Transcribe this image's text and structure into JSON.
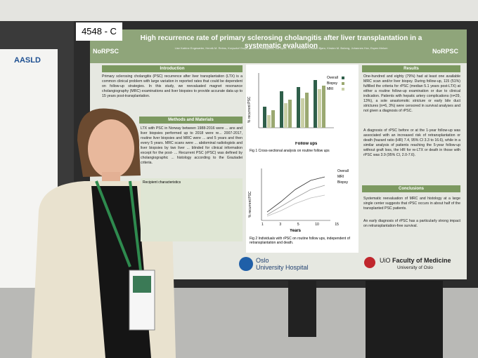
{
  "poster_number": "4548 - C",
  "poster": {
    "title": "High recurrence rate of primary sclerosing cholangitis after liver transplantation in a systematic evaluation",
    "authors": "Lise Katrine Engesæter, Henrik M. Reims, Krzysztof Grzyb, Andreas Abildgaard, Ida Björk, Tom H. Karlsen, Kristian Bjøro, Kirsten M. Boberg, Johannes Hov, Espen Melum",
    "introduction": {
      "heading": "Introduction",
      "text": "Primary sclerosing cholangitis (PSC) recurrence after liver transplantation (LTX) is a common clinical problem with large variation in reported rates that could be dependent on follow-up strategies. In this study, we reevaluated magnet resonance cholangiography (MRC) examinations and liver biopsies to provide accurate data up to 15 years post-transplantation."
    },
    "methods": {
      "heading": "Methods and Materials",
      "text": "LTX with PSC in Norway between 1988-2016 were ... ans and liver biopsies performed up to 2018 were re... 2007-2017, routine liver biopsies and MRC were ... and 5 years and then every 5 years. MRC scans were ... abdominal radiologists and liver biopsies by two liver ... blinded for clinical information except for the post- ... Recurrent PSC (rPSC) was defined by cholangiographic ... histology according to the Graziadei criteria.",
      "table_heading": "Recipient characteristics"
    },
    "results": {
      "heading": "Results",
      "paragraphs": [
        "One-hundred and eighty (79%) had at least one available MRC scan and/or liver biopsy. During follow-up, 115 (51%) fulfilled the criteria for rPSC (median 5.1 years post-LTX) at either a routine follow-up examination or due to clinical indication. Patients with hepatic artery complications (n=29, 13%), a sole anastomotic stricture or early bile duct strictures (n=6, 3%) were censored in survival analyses and not given a diagnosis of rPSC.",
        "A diagnosis of rPSC before or at the 1-year follow-up was associated with an increased risk of retransplantation or death (hazard ratio (HR) 7.4, 95% CI 3.3 to 16.6), while in a similar analysis of patients reaching the 5-year follow-up without graft loss, the HR for re-LTX or death in those with rPSC was 3.9 (95% CI, 2.0-7.6)."
      ]
    },
    "conclusions": {
      "heading": "Conclusions",
      "bullets": [
        "Systematic reevaluation of MRC and histology at a large single center suggests that rPSC occurs in about half of the transplanted PSC patients.",
        "An early diagnosis of rPSC has a particularly strong impact on retransplantation-free survival."
      ]
    },
    "figure1": {
      "y_label": "% recurrent PSC",
      "x_label": "Follow ups",
      "legend": [
        "Overall",
        "Biopsy",
        "MRI"
      ],
      "caption": "Fig 1 Cross-sectional analysis on routine follow ups"
    },
    "figure2": {
      "y_label": "% recurrent PSC",
      "x_label": "Years",
      "x_ticks": [
        "1",
        "3",
        "5",
        "10",
        "15"
      ],
      "legend": [
        "Overall",
        "MRI",
        "Biopsy"
      ],
      "caption": "Fig 2 Individuals with rPSC on routine follow ups, independent of retransplantation and death."
    },
    "logos": {
      "norpsc": "NoRPSC",
      "hospital_line1": "Oslo",
      "hospital_line2": "University Hospital",
      "uio": "UiO",
      "faculty": "Faculty of Medicine",
      "university": "University of Oslo"
    }
  },
  "left_poster": {
    "logo": "AASLD"
  }
}
